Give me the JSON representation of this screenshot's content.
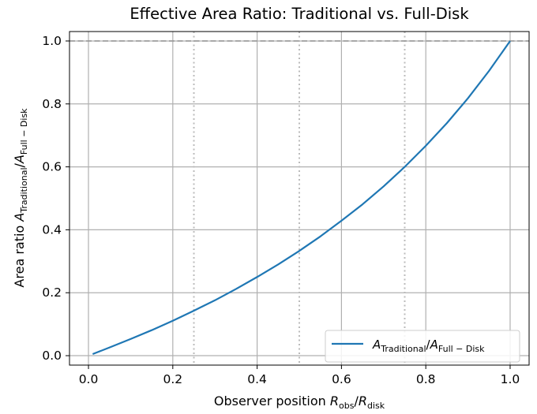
{
  "chart_data": {
    "type": "line",
    "title": "Effective Area Ratio: Traditional vs. Full-Disk",
    "xlabel": {
      "prefix": "Observer position ",
      "num_main": "R",
      "num_sub": "obs",
      "sep": "/",
      "den_main": "R",
      "den_sub": "disk"
    },
    "ylabel": {
      "prefix": "Area ratio ",
      "num_main": "A",
      "num_sub": "Traditional",
      "sep": "/",
      "den_main": "A",
      "den_sub": "Full − Disk"
    },
    "xlim": [
      -0.045,
      1.045
    ],
    "ylim": [
      -0.03,
      1.03
    ],
    "xticks": [
      0.0,
      0.2,
      0.4,
      0.6,
      0.8,
      1.0
    ],
    "xtick_labels": [
      "0.0",
      "0.2",
      "0.4",
      "0.6",
      "0.8",
      "1.0"
    ],
    "yticks": [
      0.0,
      0.2,
      0.4,
      0.6,
      0.8,
      1.0
    ],
    "ytick_labels": [
      "0.0",
      "0.2",
      "0.4",
      "0.6",
      "0.8",
      "1.0"
    ],
    "grid": true,
    "vlines": [
      0.25,
      0.5,
      0.75
    ],
    "hline": 1.0,
    "legend_position": "lower-right",
    "colors": {
      "series": "#1f77b4",
      "grid": "#b0b0b0",
      "vlines": "#bbbbbb",
      "hline": "#999999"
    },
    "series": [
      {
        "name": {
          "num_main": "A",
          "num_sub": "Traditional",
          "sep": "/",
          "den_main": "A",
          "den_sub": "Full − Disk"
        },
        "x": [
          0.01,
          0.05,
          0.1,
          0.15,
          0.2,
          0.25,
          0.3,
          0.35,
          0.4,
          0.45,
          0.5,
          0.55,
          0.6,
          0.65,
          0.7,
          0.75,
          0.8,
          0.85,
          0.9,
          0.95,
          1.0
        ],
        "y": [
          0.005,
          0.026,
          0.053,
          0.081,
          0.111,
          0.143,
          0.176,
          0.212,
          0.25,
          0.29,
          0.333,
          0.379,
          0.429,
          0.481,
          0.538,
          0.6,
          0.667,
          0.739,
          0.818,
          0.905,
          1.0
        ]
      }
    ]
  }
}
